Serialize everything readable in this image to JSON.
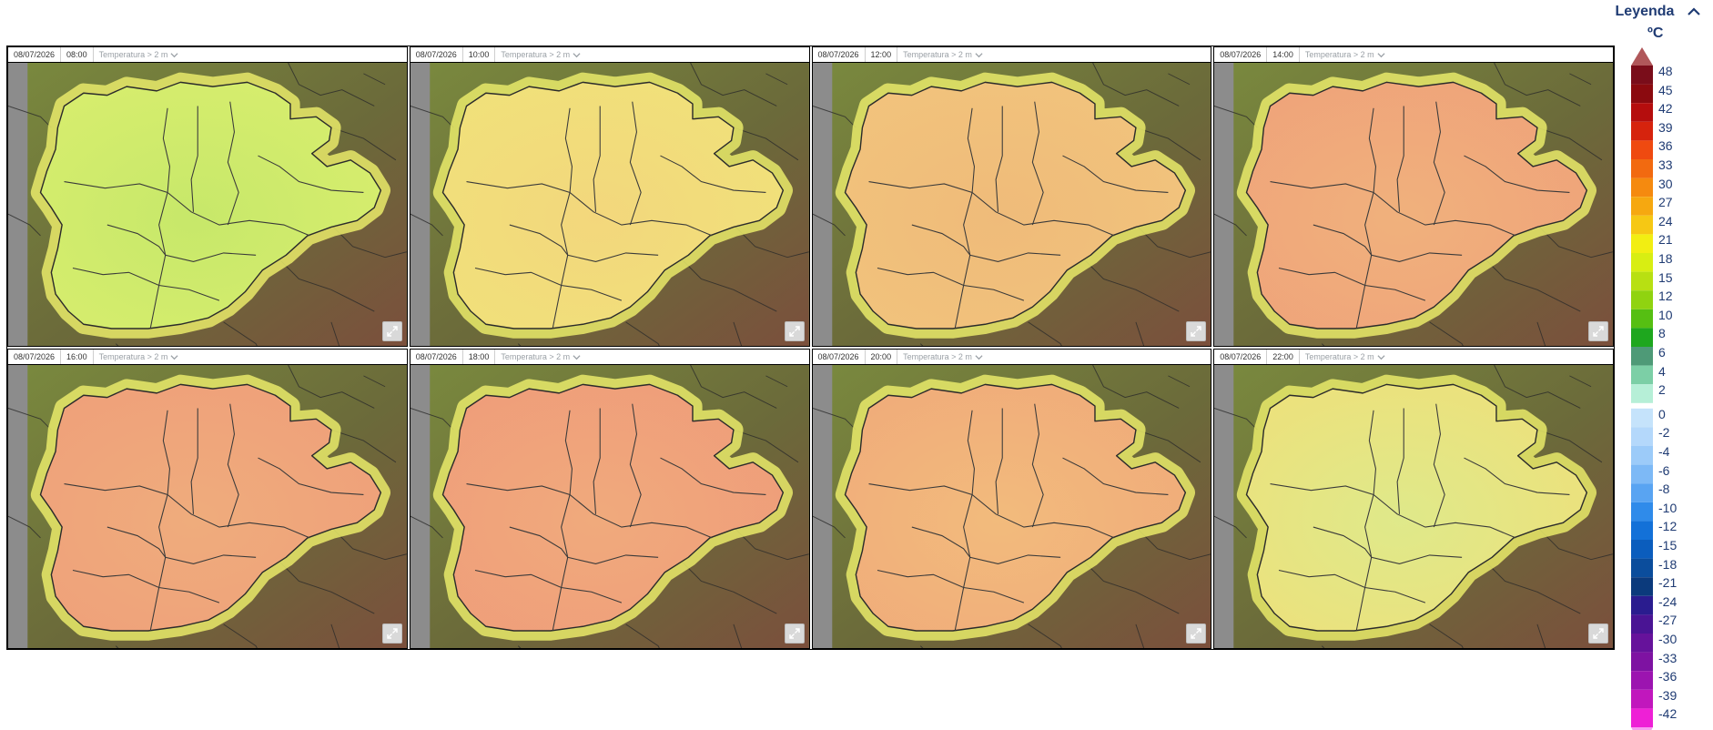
{
  "panels": [
    {
      "date": "08/07/2026",
      "time": "08:00",
      "variable": "Temperatura > 2 m",
      "tone": "#d9ee6e",
      "tone2": "#c7e86a"
    },
    {
      "date": "08/07/2026",
      "time": "10:00",
      "variable": "Temperatura > 2 m",
      "tone": "#f0e27a",
      "tone2": "#f3d77c"
    },
    {
      "date": "08/07/2026",
      "time": "12:00",
      "variable": "Temperatura > 2 m",
      "tone": "#f2c47c",
      "tone2": "#efbb7a"
    },
    {
      "date": "08/07/2026",
      "time": "14:00",
      "variable": "Temperatura > 2 m",
      "tone": "#efa27a",
      "tone2": "#f0b17c"
    },
    {
      "date": "08/07/2026",
      "time": "16:00",
      "variable": "Temperatura > 2 m",
      "tone": "#ef9f7a",
      "tone2": "#efac7c"
    },
    {
      "date": "08/07/2026",
      "time": "18:00",
      "variable": "Temperatura > 2 m",
      "tone": "#ef9c7a",
      "tone2": "#f0aa7c"
    },
    {
      "date": "08/07/2026",
      "time": "20:00",
      "variable": "Temperatura > 2 m",
      "tone": "#f0aa7a",
      "tone2": "#f2bb7c"
    },
    {
      "date": "08/07/2026",
      "time": "22:00",
      "variable": "Temperatura > 2 m",
      "tone": "#eee07a",
      "tone2": "#dfe98a"
    }
  ],
  "legend": {
    "title": "Leyenda",
    "unit": "ºC",
    "collapse_icon": "chevron-up-icon",
    "entries": [
      {
        "label": "48",
        "color": "#7a0d1a"
      },
      {
        "label": "45",
        "color": "#8b0a0f"
      },
      {
        "label": "42",
        "color": "#b50d0d"
      },
      {
        "label": "39",
        "color": "#d6230d"
      },
      {
        "label": "36",
        "color": "#ef4a10"
      },
      {
        "label": "33",
        "color": "#f26a10"
      },
      {
        "label": "30",
        "color": "#f58a0f"
      },
      {
        "label": "27",
        "color": "#f6a810"
      },
      {
        "label": "24",
        "color": "#f6c814"
      },
      {
        "label": "21",
        "color": "#f2ee12"
      },
      {
        "label": "18",
        "color": "#d8ee12"
      },
      {
        "label": "15",
        "color": "#b8e012"
      },
      {
        "label": "12",
        "color": "#90d310"
      },
      {
        "label": "10",
        "color": "#56bf12"
      },
      {
        "label": "8",
        "color": "#1ea71e"
      },
      {
        "label": "6",
        "color": "#4e9a77"
      },
      {
        "label": "4",
        "color": "#7ccfa6"
      },
      {
        "label": "2",
        "color": "#b6efd7"
      },
      {
        "label": "0",
        "color": "#c5e3fb"
      },
      {
        "label": "-2",
        "color": "#b4d8fb"
      },
      {
        "label": "-4",
        "color": "#9ccbf9"
      },
      {
        "label": "-6",
        "color": "#7db9f6"
      },
      {
        "label": "-8",
        "color": "#59a4f2"
      },
      {
        "label": "-10",
        "color": "#2f8bea"
      },
      {
        "label": "-12",
        "color": "#1371d8"
      },
      {
        "label": "-15",
        "color": "#0b5dbd"
      },
      {
        "label": "-18",
        "color": "#0b4d9c"
      },
      {
        "label": "-21",
        "color": "#0b3a7c"
      },
      {
        "label": "-24",
        "color": "#2a1c8f"
      },
      {
        "label": "-27",
        "color": "#4a1494"
      },
      {
        "label": "-30",
        "color": "#66129b"
      },
      {
        "label": "-33",
        "color": "#7e12a2"
      },
      {
        "label": "-36",
        "color": "#9c14b0"
      },
      {
        "label": "-39",
        "color": "#c117bd"
      },
      {
        "label": "-42",
        "color": "#ee20d6"
      }
    ],
    "top_arrow_color": "#b0575a",
    "bottom_arrow_color": "#f79af0"
  }
}
